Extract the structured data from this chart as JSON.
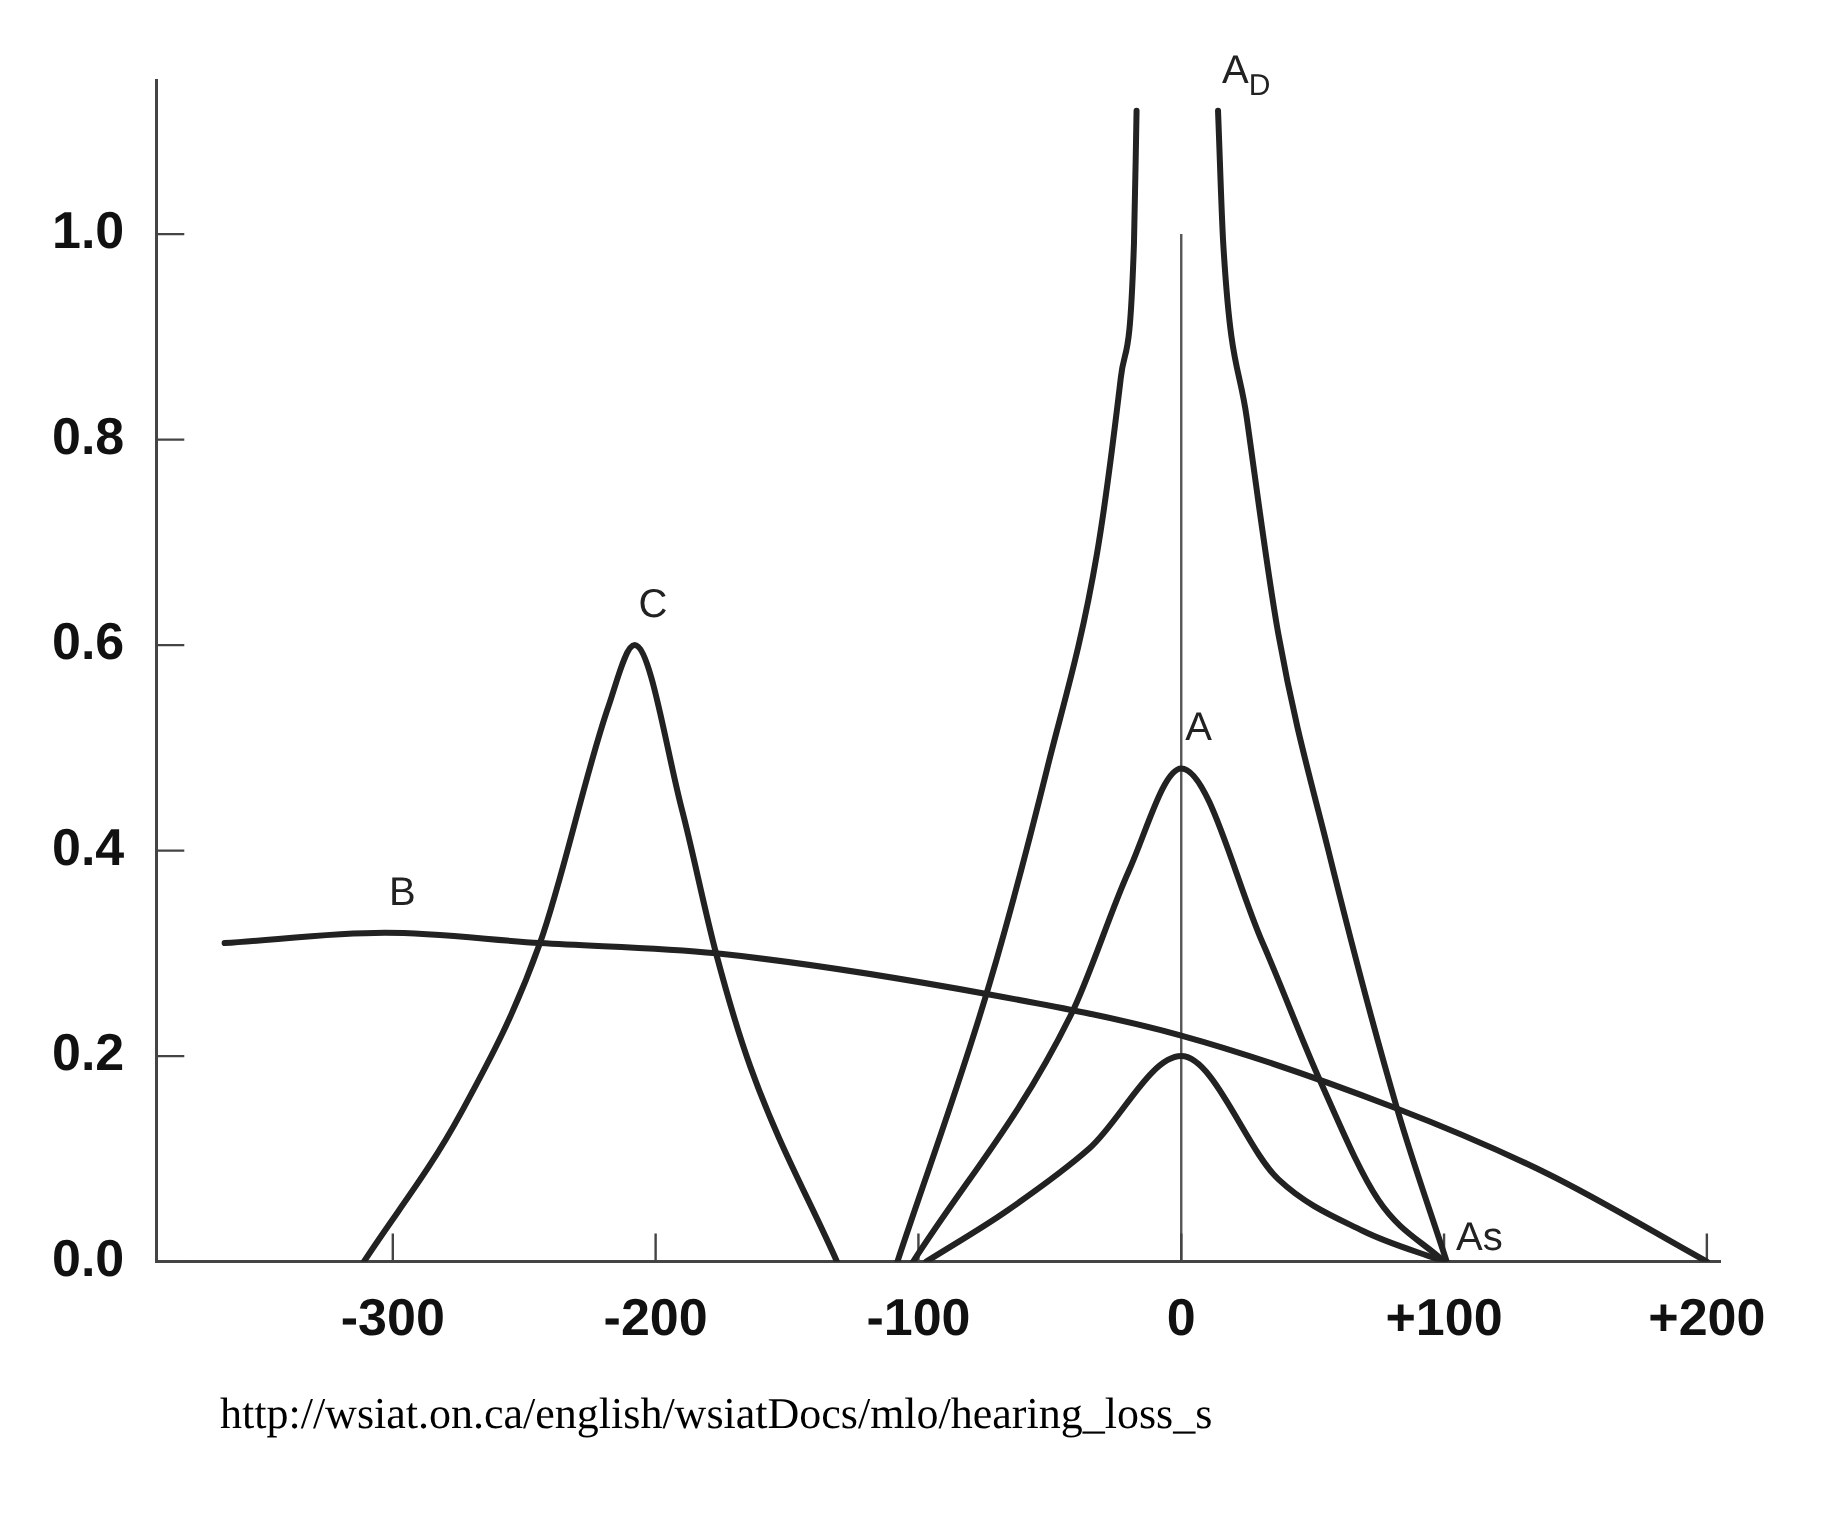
{
  "chart_data": {
    "type": "line",
    "xlim": [
      -390,
      205
    ],
    "ylim": [
      0,
      1.15
    ],
    "xticks": [
      -300,
      -200,
      -100,
      {
        "value": 0,
        "label": "0"
      },
      {
        "value": 100,
        "label": "+100"
      },
      {
        "value": 200,
        "label": "+200"
      }
    ],
    "yticks": [
      {
        "value": 0,
        "label": "0.0"
      },
      {
        "value": 0.2,
        "label": "0.2"
      },
      {
        "value": 0.4,
        "label": "0.4"
      },
      {
        "value": 0.6,
        "label": "0.6"
      },
      {
        "value": 0.8,
        "label": "0.8"
      },
      {
        "value": 1,
        "label": "1.0"
      }
    ],
    "grid": false,
    "legend": false,
    "marker": "none",
    "line_style": "solid",
    "ref_lines": [
      {
        "axis": "x",
        "value": 0,
        "color": "#555555"
      }
    ],
    "series": [
      {
        "name": "C",
        "color": "#222222",
        "x": [
          -311,
          -274,
          -244,
          -218,
          -208,
          -190,
          -177,
          -164,
          -131
        ],
        "values": [
          0,
          0.145,
          0.31,
          0.54,
          0.6,
          0.44,
          0.3,
          0.19,
          0
        ]
      },
      {
        "name": "B",
        "color": "#222222",
        "x": [
          -364,
          -303,
          -244,
          -177,
          -73,
          0,
          81,
          139,
          200
        ],
        "values": [
          0.31,
          0.32,
          0.31,
          0.3,
          0.26,
          0.22,
          0.15,
          0.086,
          0
        ]
      },
      {
        "name": "A$_{D}$",
        "color": "#222222",
        "x": [
          -108,
          -73,
          -51,
          -32,
          -23,
          -18,
          -17,
          null,
          14,
          16,
          25,
          37,
          56,
          82,
          101
        ],
        "values": [
          0,
          0.27,
          0.48,
          0.69,
          0.86,
          0.99,
          1.12,
          null,
          1.12,
          0.99,
          0.82,
          0.61,
          0.4,
          0.15,
          0
        ]
      },
      {
        "name": "A",
        "color": "#222222",
        "x": [
          -102,
          -42,
          -20,
          0,
          31,
          53,
          75,
          100
        ],
        "values": [
          0,
          0.24,
          0.38,
          0.48,
          0.31,
          0.175,
          0.06,
          0
        ]
      },
      {
        "name": "As",
        "color": "#222222",
        "x": [
          -97,
          -66,
          -35,
          0,
          37,
          69,
          100
        ],
        "values": [
          0,
          0.05,
          0.11,
          0.2,
          0.08,
          0.03,
          0
        ]
      }
    ],
    "annotations": [
      "http://wsiat.on.ca/english/wsiatDocs/mlo/hearing_loss_s"
    ]
  }
}
